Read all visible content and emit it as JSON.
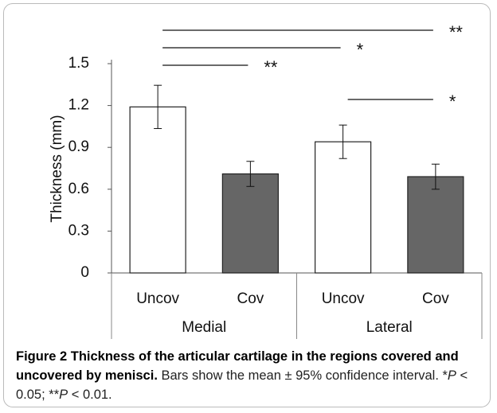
{
  "chart_data": {
    "type": "bar",
    "categories": [
      "Uncov",
      "Cov",
      "Uncov",
      "Cov"
    ],
    "groups": [
      "Medial",
      "Lateral"
    ],
    "values": [
      1.19,
      0.71,
      0.94,
      0.69
    ],
    "errors": [
      0.155,
      0.09,
      0.12,
      0.09
    ],
    "colors": [
      "#ffffff",
      "#666666",
      "#ffffff",
      "#666666"
    ],
    "ylabel": "Thickness (mm)",
    "ylim": [
      0,
      1.5
    ],
    "yticks": [
      0,
      0.3,
      0.6,
      0.9,
      1.2,
      1.5
    ],
    "annotations": [
      {
        "text": "**",
        "from": 0,
        "to": 3
      },
      {
        "text": "*",
        "from": 0,
        "to": 2
      },
      {
        "text": "**",
        "from": 0,
        "to": 1
      },
      {
        "text": "*",
        "from": 2,
        "to": 3
      }
    ]
  },
  "caption": {
    "bold": "Figure 2 Thickness of the articular cartilage in the regions covered and uncovered by menisci.",
    "parts": [
      "Bars show the mean ± 95% confidence interval. *",
      "P",
      " < 0.05; **",
      "P",
      " < 0.01."
    ]
  }
}
